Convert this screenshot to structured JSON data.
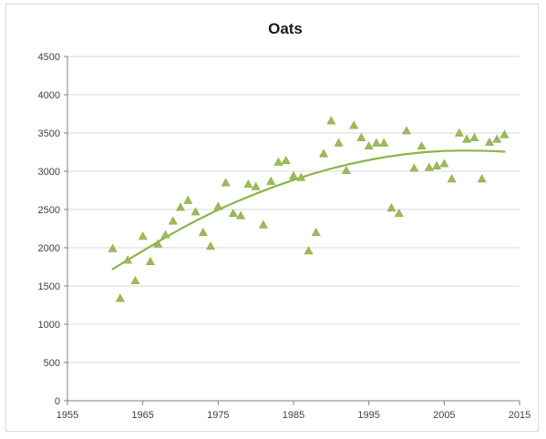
{
  "chart_data": {
    "type": "scatter",
    "title": "Oats",
    "xlabel": "",
    "ylabel": "",
    "xlim": [
      1955,
      2015
    ],
    "ylim": [
      0,
      4500
    ],
    "x_ticks": [
      1955,
      1965,
      1975,
      1985,
      1995,
      2005,
      2015
    ],
    "y_ticks": [
      0,
      500,
      1000,
      1500,
      2000,
      2500,
      3000,
      3500,
      4000,
      4500
    ],
    "grid": "horizontal",
    "legend": "none",
    "colors": {
      "marker": "#9bbb59",
      "trend": "#8db44a",
      "grid": "#d9d9d9",
      "axis": "#808080"
    },
    "series": [
      {
        "marker": "triangle",
        "points": [
          [
            1961,
            1990
          ],
          [
            1962,
            1340
          ],
          [
            1963,
            1840
          ],
          [
            1964,
            1570
          ],
          [
            1965,
            2150
          ],
          [
            1966,
            1820
          ],
          [
            1967,
            2050
          ],
          [
            1968,
            2170
          ],
          [
            1969,
            2350
          ],
          [
            1970,
            2530
          ],
          [
            1971,
            2620
          ],
          [
            1972,
            2470
          ],
          [
            1973,
            2200
          ],
          [
            1974,
            2020
          ],
          [
            1975,
            2540
          ],
          [
            1976,
            2850
          ],
          [
            1977,
            2450
          ],
          [
            1978,
            2420
          ],
          [
            1979,
            2830
          ],
          [
            1980,
            2800
          ],
          [
            1981,
            2300
          ],
          [
            1982,
            2870
          ],
          [
            1983,
            3120
          ],
          [
            1984,
            3140
          ],
          [
            1985,
            2940
          ],
          [
            1986,
            2920
          ],
          [
            1987,
            1960
          ],
          [
            1988,
            2200
          ],
          [
            1989,
            3230
          ],
          [
            1990,
            3660
          ],
          [
            1991,
            3370
          ],
          [
            1992,
            3010
          ],
          [
            1993,
            3600
          ],
          [
            1994,
            3440
          ],
          [
            1995,
            3330
          ],
          [
            1996,
            3370
          ],
          [
            1997,
            3370
          ],
          [
            1998,
            2520
          ],
          [
            1999,
            2450
          ],
          [
            2000,
            3530
          ],
          [
            2001,
            3040
          ],
          [
            2002,
            3330
          ],
          [
            2003,
            3050
          ],
          [
            2004,
            3070
          ],
          [
            2005,
            3100
          ],
          [
            2006,
            2900
          ],
          [
            2007,
            3500
          ],
          [
            2008,
            3420
          ],
          [
            2009,
            3440
          ],
          [
            2010,
            2900
          ],
          [
            2011,
            3380
          ],
          [
            2012,
            3420
          ],
          [
            2013,
            3480
          ]
        ]
      }
    ],
    "trendline": {
      "type": "polynomial",
      "x": [
        1961,
        1965,
        1970,
        1975,
        1980,
        1985,
        1990,
        1995,
        2000,
        2005,
        2010,
        2013
      ],
      "y": [
        1720,
        1960,
        2250,
        2500,
        2710,
        2890,
        3040,
        3150,
        3230,
        3270,
        3270,
        3255
      ]
    }
  }
}
